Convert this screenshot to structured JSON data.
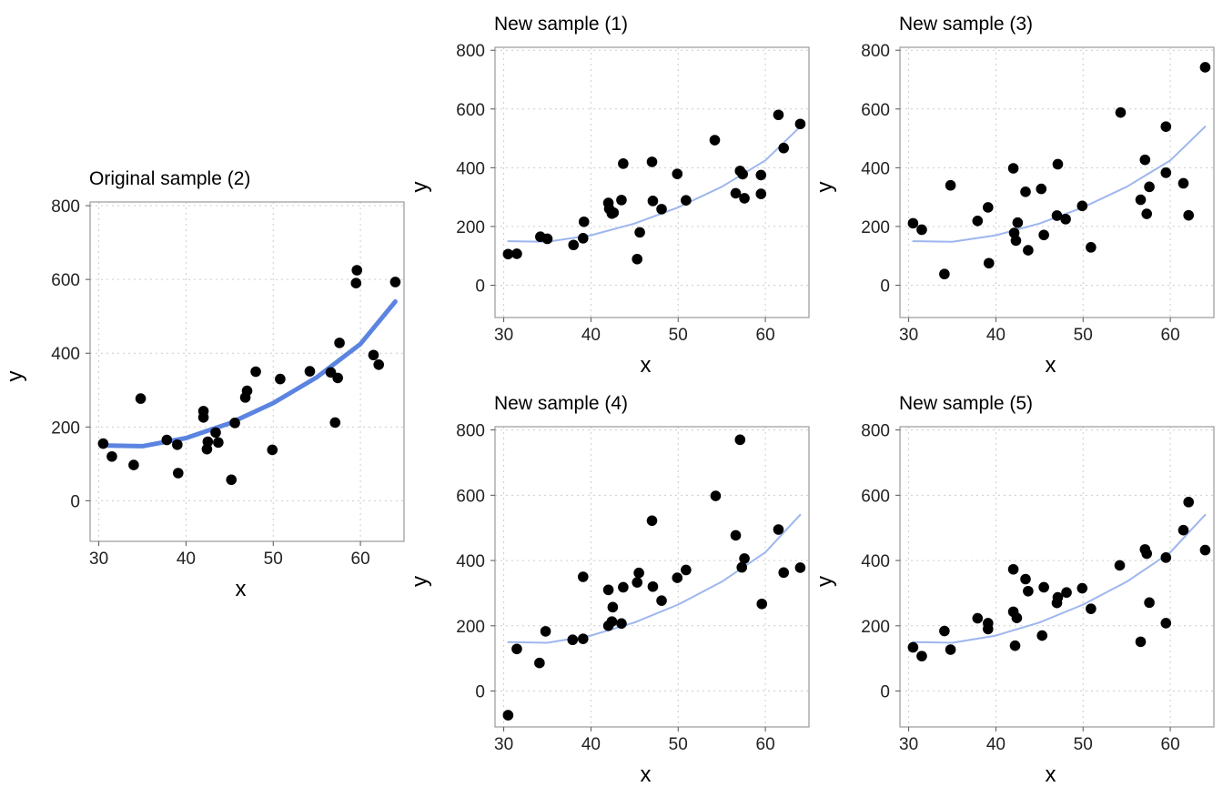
{
  "colors": {
    "point": "#000000",
    "fit": "#5b84e0",
    "fit_light": "#9db6ee",
    "grid": "#cccccc",
    "border": "#9a9a9a"
  },
  "chart_data": [
    {
      "type": "scatter",
      "title": "Original sample (2)",
      "xlabel": "x",
      "ylabel": "y",
      "xlim": [
        29,
        65
      ],
      "ylim": [
        -110,
        810
      ],
      "xticks": [
        30,
        40,
        50,
        60
      ],
      "yticks": [
        0,
        200,
        400,
        600,
        800
      ],
      "grid": true,
      "fit_style": "bold",
      "fit_curve": {
        "type": "quadratic",
        "points": [
          [
            30.5,
            150
          ],
          [
            35,
            148
          ],
          [
            40,
            170
          ],
          [
            45,
            210
          ],
          [
            50,
            265
          ],
          [
            55,
            335
          ],
          [
            60,
            425
          ],
          [
            64,
            540
          ]
        ]
      },
      "points": [
        [
          30.5,
          155
        ],
        [
          31.5,
          120
        ],
        [
          34,
          97
        ],
        [
          34.8,
          277
        ],
        [
          37.8,
          165
        ],
        [
          39,
          152
        ],
        [
          39.1,
          75
        ],
        [
          42,
          243
        ],
        [
          42,
          226
        ],
        [
          42.5,
          160
        ],
        [
          42.4,
          140
        ],
        [
          43.4,
          185
        ],
        [
          43.7,
          158
        ],
        [
          45.2,
          57
        ],
        [
          45.6,
          211
        ],
        [
          46.8,
          280
        ],
        [
          47,
          298
        ],
        [
          48,
          350
        ],
        [
          49.9,
          138
        ],
        [
          50.8,
          330
        ],
        [
          54.2,
          351
        ],
        [
          56.6,
          348
        ],
        [
          57.1,
          212
        ],
        [
          57.4,
          333
        ],
        [
          57.6,
          428
        ],
        [
          59.6,
          625
        ],
        [
          59.5,
          590
        ],
        [
          61.5,
          395
        ],
        [
          62.1,
          369
        ],
        [
          64,
          593
        ]
      ]
    },
    {
      "type": "scatter",
      "title": "New sample (1)",
      "xlabel": "x",
      "ylabel": "y",
      "xlim": [
        29,
        65
      ],
      "ylim": [
        -110,
        810
      ],
      "xticks": [
        30,
        40,
        50,
        60
      ],
      "yticks": [
        0,
        200,
        400,
        600,
        800
      ],
      "grid": true,
      "fit_style": "thin",
      "fit_curve": {
        "type": "quadratic",
        "points": [
          [
            30.5,
            150
          ],
          [
            35,
            148
          ],
          [
            40,
            170
          ],
          [
            45,
            210
          ],
          [
            50,
            265
          ],
          [
            55,
            335
          ],
          [
            60,
            425
          ],
          [
            64,
            540
          ]
        ]
      },
      "points": [
        [
          30.5,
          106
        ],
        [
          31.5,
          107
        ],
        [
          34.2,
          165
        ],
        [
          35,
          158
        ],
        [
          38,
          137
        ],
        [
          39.1,
          160
        ],
        [
          39.2,
          216
        ],
        [
          42,
          280
        ],
        [
          42.1,
          260
        ],
        [
          42.4,
          244
        ],
        [
          42.6,
          247
        ],
        [
          43.5,
          290
        ],
        [
          43.7,
          414
        ],
        [
          45.3,
          89
        ],
        [
          45.6,
          180
        ],
        [
          47,
          420
        ],
        [
          47.1,
          287
        ],
        [
          48.1,
          259
        ],
        [
          49.9,
          379
        ],
        [
          50.9,
          289
        ],
        [
          54.2,
          494
        ],
        [
          56.6,
          313
        ],
        [
          57.1,
          389
        ],
        [
          57.4,
          378
        ],
        [
          57.6,
          296
        ],
        [
          59.5,
          375
        ],
        [
          59.5,
          311
        ],
        [
          61.5,
          580
        ],
        [
          62.1,
          467
        ],
        [
          64,
          549
        ]
      ]
    },
    {
      "type": "scatter",
      "title": "New sample (3)",
      "xlabel": "x",
      "ylabel": "y",
      "xlim": [
        29,
        65
      ],
      "ylim": [
        -110,
        810
      ],
      "xticks": [
        30,
        40,
        50,
        60
      ],
      "yticks": [
        0,
        200,
        400,
        600,
        800
      ],
      "grid": true,
      "fit_style": "thin",
      "fit_curve": {
        "type": "quadratic",
        "points": [
          [
            30.5,
            150
          ],
          [
            35,
            148
          ],
          [
            40,
            170
          ],
          [
            45,
            210
          ],
          [
            50,
            265
          ],
          [
            55,
            335
          ],
          [
            60,
            425
          ],
          [
            64,
            540
          ]
        ]
      },
      "points": [
        [
          30.5,
          211
        ],
        [
          31.5,
          189
        ],
        [
          34.1,
          38
        ],
        [
          34.8,
          340
        ],
        [
          37.9,
          219
        ],
        [
          39.1,
          265
        ],
        [
          39.2,
          75
        ],
        [
          42,
          398
        ],
        [
          42.1,
          178
        ],
        [
          42.3,
          152
        ],
        [
          42.5,
          213
        ],
        [
          43.4,
          318
        ],
        [
          43.7,
          119
        ],
        [
          45.2,
          328
        ],
        [
          45.5,
          171
        ],
        [
          47,
          237
        ],
        [
          47.1,
          412
        ],
        [
          48,
          225
        ],
        [
          49.9,
          270
        ],
        [
          50.9,
          129
        ],
        [
          54.3,
          588
        ],
        [
          56.6,
          291
        ],
        [
          57.1,
          427
        ],
        [
          57.3,
          243
        ],
        [
          57.6,
          335
        ],
        [
          59.5,
          540
        ],
        [
          59.5,
          383
        ],
        [
          61.5,
          347
        ],
        [
          62.1,
          238
        ],
        [
          64,
          742
        ]
      ]
    },
    {
      "type": "scatter",
      "title": "New sample (4)",
      "xlabel": "x",
      "ylabel": "y",
      "xlim": [
        29,
        65
      ],
      "ylim": [
        -110,
        810
      ],
      "xticks": [
        30,
        40,
        50,
        60
      ],
      "yticks": [
        0,
        200,
        400,
        600,
        800
      ],
      "grid": true,
      "fit_style": "thin",
      "fit_curve": {
        "type": "quadratic",
        "points": [
          [
            30.5,
            150
          ],
          [
            35,
            148
          ],
          [
            40,
            170
          ],
          [
            45,
            210
          ],
          [
            50,
            265
          ],
          [
            55,
            335
          ],
          [
            60,
            425
          ],
          [
            64,
            540
          ]
        ]
      },
      "points": [
        [
          30.5,
          -74
        ],
        [
          31.5,
          129
        ],
        [
          34.1,
          86
        ],
        [
          34.8,
          183
        ],
        [
          37.9,
          157
        ],
        [
          39.1,
          160
        ],
        [
          39.1,
          350
        ],
        [
          42,
          310
        ],
        [
          42,
          200
        ],
        [
          42.4,
          213
        ],
        [
          42.5,
          257
        ],
        [
          43.5,
          207
        ],
        [
          43.7,
          318
        ],
        [
          45.3,
          333
        ],
        [
          45.5,
          362
        ],
        [
          47,
          522
        ],
        [
          47.1,
          320
        ],
        [
          48.1,
          277
        ],
        [
          49.9,
          347
        ],
        [
          50.9,
          371
        ],
        [
          54.3,
          598
        ],
        [
          56.6,
          477
        ],
        [
          57.1,
          770
        ],
        [
          57.3,
          379
        ],
        [
          57.6,
          406
        ],
        [
          59.6,
          267
        ],
        [
          61.5,
          495
        ],
        [
          62.1,
          363
        ],
        [
          64,
          378
        ]
      ]
    },
    {
      "type": "scatter",
      "title": "New sample (5)",
      "xlabel": "x",
      "ylabel": "y",
      "xlim": [
        29,
        65
      ],
      "ylim": [
        -110,
        810
      ],
      "xticks": [
        30,
        40,
        50,
        60
      ],
      "yticks": [
        0,
        200,
        400,
        600,
        800
      ],
      "grid": true,
      "fit_style": "thin",
      "fit_curve": {
        "type": "quadratic",
        "points": [
          [
            30.5,
            150
          ],
          [
            35,
            148
          ],
          [
            40,
            170
          ],
          [
            45,
            210
          ],
          [
            50,
            265
          ],
          [
            55,
            335
          ],
          [
            60,
            425
          ],
          [
            64,
            540
          ]
        ]
      },
      "points": [
        [
          30.5,
          134
        ],
        [
          31.5,
          107
        ],
        [
          34.1,
          184
        ],
        [
          34.8,
          127
        ],
        [
          37.9,
          223
        ],
        [
          39.1,
          208
        ],
        [
          39.1,
          190
        ],
        [
          42,
          373
        ],
        [
          42,
          243
        ],
        [
          42.2,
          139
        ],
        [
          42.4,
          224
        ],
        [
          43.4,
          343
        ],
        [
          43.7,
          306
        ],
        [
          45.3,
          170
        ],
        [
          45.5,
          318
        ],
        [
          47,
          270
        ],
        [
          47.1,
          287
        ],
        [
          48.1,
          302
        ],
        [
          49.9,
          315
        ],
        [
          50.9,
          252
        ],
        [
          54.2,
          385
        ],
        [
          56.6,
          151
        ],
        [
          57.1,
          434
        ],
        [
          57.3,
          421
        ],
        [
          57.6,
          271
        ],
        [
          59.5,
          409
        ],
        [
          59.5,
          208
        ],
        [
          61.5,
          493
        ],
        [
          62.1,
          579
        ],
        [
          64,
          432
        ]
      ]
    }
  ]
}
